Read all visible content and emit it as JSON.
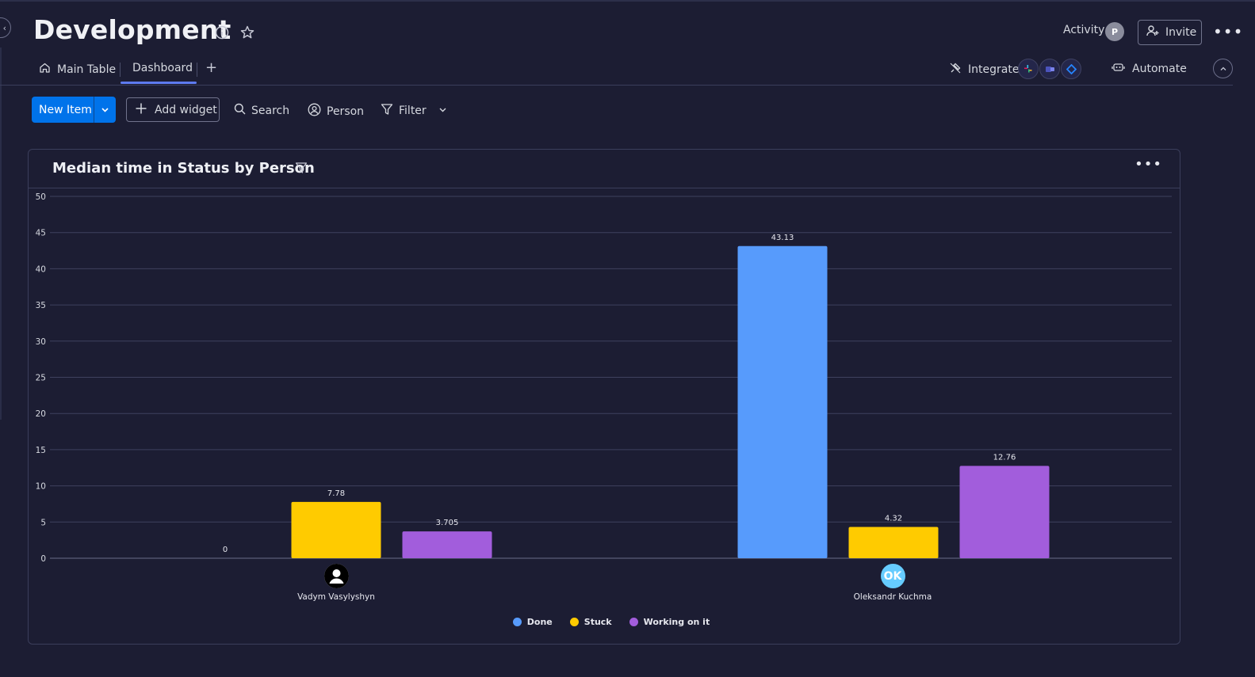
{
  "board": {
    "title": "Development"
  },
  "header": {
    "activity_label": "Activity",
    "activity_avatar": "P",
    "invite_label": "Invite",
    "more_label": "•••"
  },
  "tabs": [
    {
      "label": "Main Table"
    },
    {
      "label": "Dashboard",
      "active": true
    }
  ],
  "add_tab_label": "+",
  "integrate_label": "Integrate",
  "automate_label": "Automate",
  "toolbar": {
    "new_item_label": "New Item",
    "add_widget_label": "Add widget",
    "search_label": "Search",
    "person_label": "Person",
    "filter_label": "Filter"
  },
  "widget": {
    "title": "Median time in Status by Person",
    "more_label": "•••"
  },
  "colors": {
    "done": "#579bfc",
    "stuck": "#ffcb00",
    "working": "#a25ddc",
    "primary": "#0073ea",
    "background": "#1c1d33"
  },
  "chart_data": {
    "type": "bar",
    "title": "Median time in Status by Person",
    "categories": [
      "Vadym Vasylyshyn",
      "Oleksandr Kuchma"
    ],
    "series": [
      {
        "name": "Done",
        "color": "#579bfc",
        "values": [
          0,
          43.13
        ]
      },
      {
        "name": "Stuck",
        "color": "#ffcb00",
        "values": [
          7.78,
          4.32
        ]
      },
      {
        "name": "Working on it",
        "color": "#a25ddc",
        "values": [
          3.705,
          12.76
        ]
      }
    ],
    "data_labels": [
      [
        "0",
        "7.78",
        "3.705"
      ],
      [
        "43.13",
        "4.32",
        "12.76"
      ]
    ],
    "ylim": [
      0,
      50
    ],
    "yticks": [
      0,
      5,
      10,
      15,
      20,
      25,
      30,
      35,
      40,
      45,
      50
    ],
    "grid": true,
    "legend": "bottom-center"
  },
  "people": [
    {
      "name": "Vadym Vasylyshyn",
      "avatar_icon": "person-icon",
      "initials": ""
    },
    {
      "name": "Oleksandr Kuchma",
      "avatar_icon": "",
      "initials": "OK",
      "avatar_color": "#66ccff"
    }
  ]
}
